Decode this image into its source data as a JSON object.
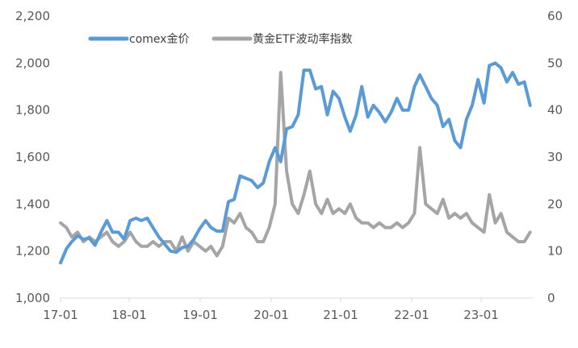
{
  "chart_data": {
    "type": "line",
    "title": "",
    "xlabel": "",
    "ylabel": "",
    "x_ticks": [
      "17-01",
      "18-01",
      "19-01",
      "20-01",
      "21-01",
      "22-01",
      "23-01"
    ],
    "y_left": {
      "min": 1000,
      "max": 2200,
      "ticks": [
        "1,000",
        "1,200",
        "1,400",
        "1,600",
        "1,800",
        "2,000",
        "2,200"
      ]
    },
    "y_right": {
      "min": 0,
      "max": 60,
      "ticks": [
        "0",
        "10",
        "20",
        "30",
        "40",
        "50",
        "60"
      ]
    },
    "grid": false,
    "legend_position": "top",
    "series": [
      {
        "name": "comex金价",
        "axis": "left",
        "color": "#5b9bd5",
        "points": [
          [
            "2017-01",
            1150
          ],
          [
            "2017-02",
            1210
          ],
          [
            "2017-03",
            1240
          ],
          [
            "2017-04",
            1265
          ],
          [
            "2017-05",
            1250
          ],
          [
            "2017-06",
            1255
          ],
          [
            "2017-07",
            1225
          ],
          [
            "2017-08",
            1280
          ],
          [
            "2017-09",
            1330
          ],
          [
            "2017-10",
            1280
          ],
          [
            "2017-11",
            1280
          ],
          [
            "2017-12",
            1250
          ],
          [
            "2018-01",
            1330
          ],
          [
            "2018-02",
            1340
          ],
          [
            "2018-03",
            1330
          ],
          [
            "2018-04",
            1340
          ],
          [
            "2018-05",
            1300
          ],
          [
            "2018-06",
            1260
          ],
          [
            "2018-07",
            1230
          ],
          [
            "2018-08",
            1200
          ],
          [
            "2018-09",
            1195
          ],
          [
            "2018-10",
            1215
          ],
          [
            "2018-11",
            1220
          ],
          [
            "2018-12",
            1250
          ],
          [
            "2019-01",
            1295
          ],
          [
            "2019-02",
            1330
          ],
          [
            "2019-03",
            1300
          ],
          [
            "2019-04",
            1285
          ],
          [
            "2019-05",
            1285
          ],
          [
            "2019-06",
            1410
          ],
          [
            "2019-07",
            1420
          ],
          [
            "2019-08",
            1520
          ],
          [
            "2019-09",
            1510
          ],
          [
            "2019-10",
            1500
          ],
          [
            "2019-11",
            1470
          ],
          [
            "2019-12",
            1490
          ],
          [
            "2020-01",
            1580
          ],
          [
            "2020-02",
            1640
          ],
          [
            "2020-03",
            1580
          ],
          [
            "2020-04",
            1720
          ],
          [
            "2020-05",
            1730
          ],
          [
            "2020-06",
            1780
          ],
          [
            "2020-07",
            1970
          ],
          [
            "2020-08",
            1970
          ],
          [
            "2020-09",
            1890
          ],
          [
            "2020-10",
            1900
          ],
          [
            "2020-11",
            1780
          ],
          [
            "2020-12",
            1880
          ],
          [
            "2021-01",
            1850
          ],
          [
            "2021-02",
            1770
          ],
          [
            "2021-03",
            1710
          ],
          [
            "2021-04",
            1780
          ],
          [
            "2021-05",
            1900
          ],
          [
            "2021-06",
            1770
          ],
          [
            "2021-07",
            1820
          ],
          [
            "2021-08",
            1790
          ],
          [
            "2021-09",
            1750
          ],
          [
            "2021-10",
            1790
          ],
          [
            "2021-11",
            1850
          ],
          [
            "2021-12",
            1800
          ],
          [
            "2022-01",
            1800
          ],
          [
            "2022-02",
            1900
          ],
          [
            "2022-03",
            1950
          ],
          [
            "2022-04",
            1900
          ],
          [
            "2022-05",
            1850
          ],
          [
            "2022-06",
            1820
          ],
          [
            "2022-07",
            1730
          ],
          [
            "2022-08",
            1760
          ],
          [
            "2022-09",
            1670
          ],
          [
            "2022-10",
            1640
          ],
          [
            "2022-11",
            1760
          ],
          [
            "2022-12",
            1820
          ],
          [
            "2023-01",
            1930
          ],
          [
            "2023-02",
            1830
          ],
          [
            "2023-03",
            1990
          ],
          [
            "2023-04",
            2000
          ],
          [
            "2023-05",
            1980
          ],
          [
            "2023-06",
            1920
          ],
          [
            "2023-07",
            1960
          ],
          [
            "2023-08",
            1910
          ],
          [
            "2023-09",
            1920
          ],
          [
            "2023-10",
            1820
          ]
        ]
      },
      {
        "name": "黄金ETF波动率指数",
        "axis": "right",
        "color": "#a5a5a5",
        "points": [
          [
            "2017-01",
            16
          ],
          [
            "2017-02",
            15
          ],
          [
            "2017-03",
            13
          ],
          [
            "2017-04",
            14
          ],
          [
            "2017-05",
            12
          ],
          [
            "2017-06",
            13
          ],
          [
            "2017-07",
            12
          ],
          [
            "2017-08",
            13
          ],
          [
            "2017-09",
            14
          ],
          [
            "2017-10",
            12
          ],
          [
            "2017-11",
            11
          ],
          [
            "2017-12",
            12
          ],
          [
            "2018-01",
            14
          ],
          [
            "2018-02",
            12
          ],
          [
            "2018-03",
            11
          ],
          [
            "2018-04",
            11
          ],
          [
            "2018-05",
            12
          ],
          [
            "2018-06",
            11
          ],
          [
            "2018-07",
            12
          ],
          [
            "2018-08",
            12
          ],
          [
            "2018-09",
            10
          ],
          [
            "2018-10",
            13
          ],
          [
            "2018-11",
            10
          ],
          [
            "2018-12",
            12
          ],
          [
            "2019-01",
            11
          ],
          [
            "2019-02",
            10
          ],
          [
            "2019-03",
            11
          ],
          [
            "2019-04",
            9
          ],
          [
            "2019-05",
            11
          ],
          [
            "2019-06",
            17
          ],
          [
            "2019-07",
            16
          ],
          [
            "2019-08",
            18
          ],
          [
            "2019-09",
            15
          ],
          [
            "2019-10",
            14
          ],
          [
            "2019-11",
            12
          ],
          [
            "2019-12",
            12
          ],
          [
            "2020-01",
            15
          ],
          [
            "2020-02",
            20
          ],
          [
            "2020-03",
            48
          ],
          [
            "2020-04",
            27
          ],
          [
            "2020-05",
            20
          ],
          [
            "2020-06",
            18
          ],
          [
            "2020-07",
            22
          ],
          [
            "2020-08",
            27
          ],
          [
            "2020-09",
            20
          ],
          [
            "2020-10",
            18
          ],
          [
            "2020-11",
            21
          ],
          [
            "2020-12",
            18
          ],
          [
            "2021-01",
            19
          ],
          [
            "2021-02",
            18
          ],
          [
            "2021-03",
            20
          ],
          [
            "2021-04",
            17
          ],
          [
            "2021-05",
            16
          ],
          [
            "2021-06",
            16
          ],
          [
            "2021-07",
            15
          ],
          [
            "2021-08",
            16
          ],
          [
            "2021-09",
            15
          ],
          [
            "2021-10",
            15
          ],
          [
            "2021-11",
            16
          ],
          [
            "2021-12",
            15
          ],
          [
            "2022-01",
            16
          ],
          [
            "2022-02",
            18
          ],
          [
            "2022-03",
            32
          ],
          [
            "2022-04",
            20
          ],
          [
            "2022-05",
            19
          ],
          [
            "2022-06",
            18
          ],
          [
            "2022-07",
            21
          ],
          [
            "2022-08",
            17
          ],
          [
            "2022-09",
            18
          ],
          [
            "2022-10",
            17
          ],
          [
            "2022-11",
            18
          ],
          [
            "2022-12",
            16
          ],
          [
            "2023-01",
            15
          ],
          [
            "2023-02",
            14
          ],
          [
            "2023-03",
            22
          ],
          [
            "2023-04",
            16
          ],
          [
            "2023-05",
            18
          ],
          [
            "2023-06",
            14
          ],
          [
            "2023-07",
            13
          ],
          [
            "2023-08",
            12
          ],
          [
            "2023-09",
            12
          ],
          [
            "2023-10",
            14
          ]
        ]
      }
    ]
  }
}
